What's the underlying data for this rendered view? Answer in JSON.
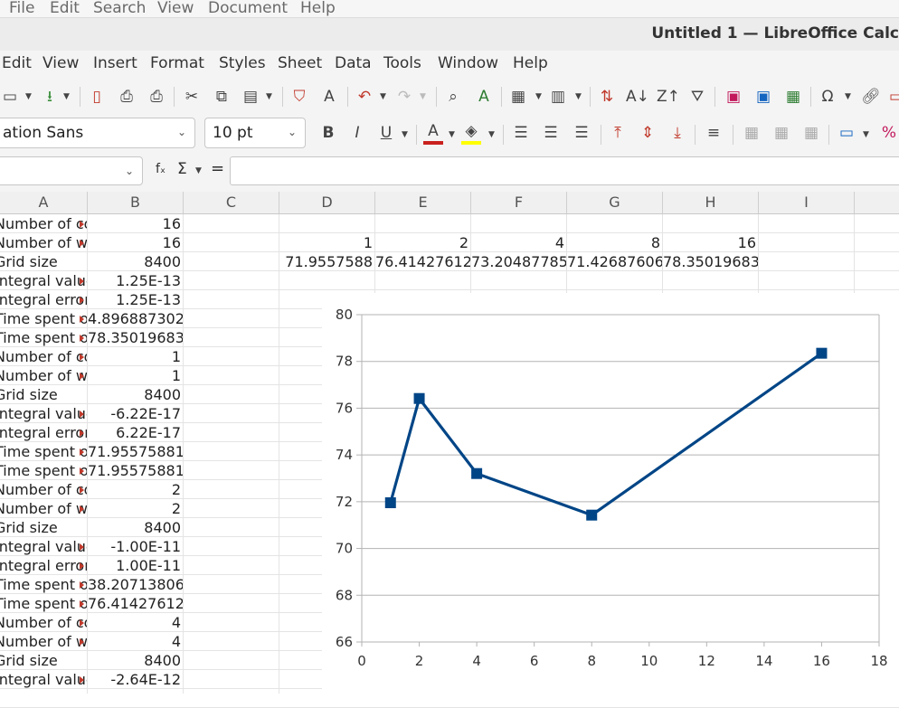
{
  "global_menu": [
    "File",
    "Edit",
    "Search",
    "View",
    "Document",
    "Help"
  ],
  "window_title": "Untitled 1 — LibreOffice Calc",
  "menu": [
    "Edit",
    "View",
    "Insert",
    "Format",
    "Styles",
    "Sheet",
    "Data",
    "Tools",
    "Window",
    "Help"
  ],
  "font_name": "ation Sans",
  "font_size": "10 pt",
  "formula_bar": {
    "name_box": "",
    "formula": ""
  },
  "columns": [
    "A",
    "B",
    "C",
    "D",
    "E",
    "F",
    "G",
    "H",
    "I"
  ],
  "rows_A": [
    "Number of co",
    "Number of wo",
    "Grid size",
    "Integral value",
    "Integral error",
    "Time spent o",
    "Time spent o",
    "Number of co",
    "Number of wo",
    "Grid size",
    "Integral value",
    "Integral error",
    "Time spent o",
    "Time spent o",
    "Number of co",
    "Number of wo",
    "Grid size",
    "Integral value",
    "Integral error",
    "Time spent o",
    "Time spent o",
    "Number of co",
    "Number of wo",
    "Grid size",
    "Integral value"
  ],
  "rows_B": [
    "16",
    "16",
    "8400",
    "1.25E-13",
    "1.25E-13",
    "4.8968873024",
    "78.350196838",
    "1",
    "1",
    "8400",
    "-6.22E-17",
    "6.22E-17",
    "71.95575881",
    "71.95575881",
    "2",
    "2",
    "8400",
    "-1.00E-11",
    "1.00E-11",
    "38.207138062",
    "76.414276123",
    "4",
    "4",
    "8400",
    "-2.64E-12"
  ],
  "row2_DH": [
    "1",
    "2",
    "4",
    "8",
    "16"
  ],
  "row3_DH": [
    "71.9557588",
    "76.414276123",
    "73.2048778537",
    "71.4268760687",
    "78.350196838"
  ],
  "chart_data": {
    "type": "line",
    "x": [
      1,
      2,
      4,
      8,
      16
    ],
    "y": [
      71.9557588,
      76.414276123,
      73.20487785,
      71.42687606,
      78.350196838
    ],
    "xlim": [
      0,
      18
    ],
    "ylim": [
      66,
      80
    ],
    "xticks": [
      "0",
      "2",
      "4",
      "6",
      "8",
      "10",
      "12",
      "14",
      "16",
      "18"
    ],
    "yticks": [
      "66",
      "68",
      "70",
      "72",
      "74",
      "76",
      "78",
      "80"
    ],
    "grid": true,
    "color": "#004586"
  }
}
